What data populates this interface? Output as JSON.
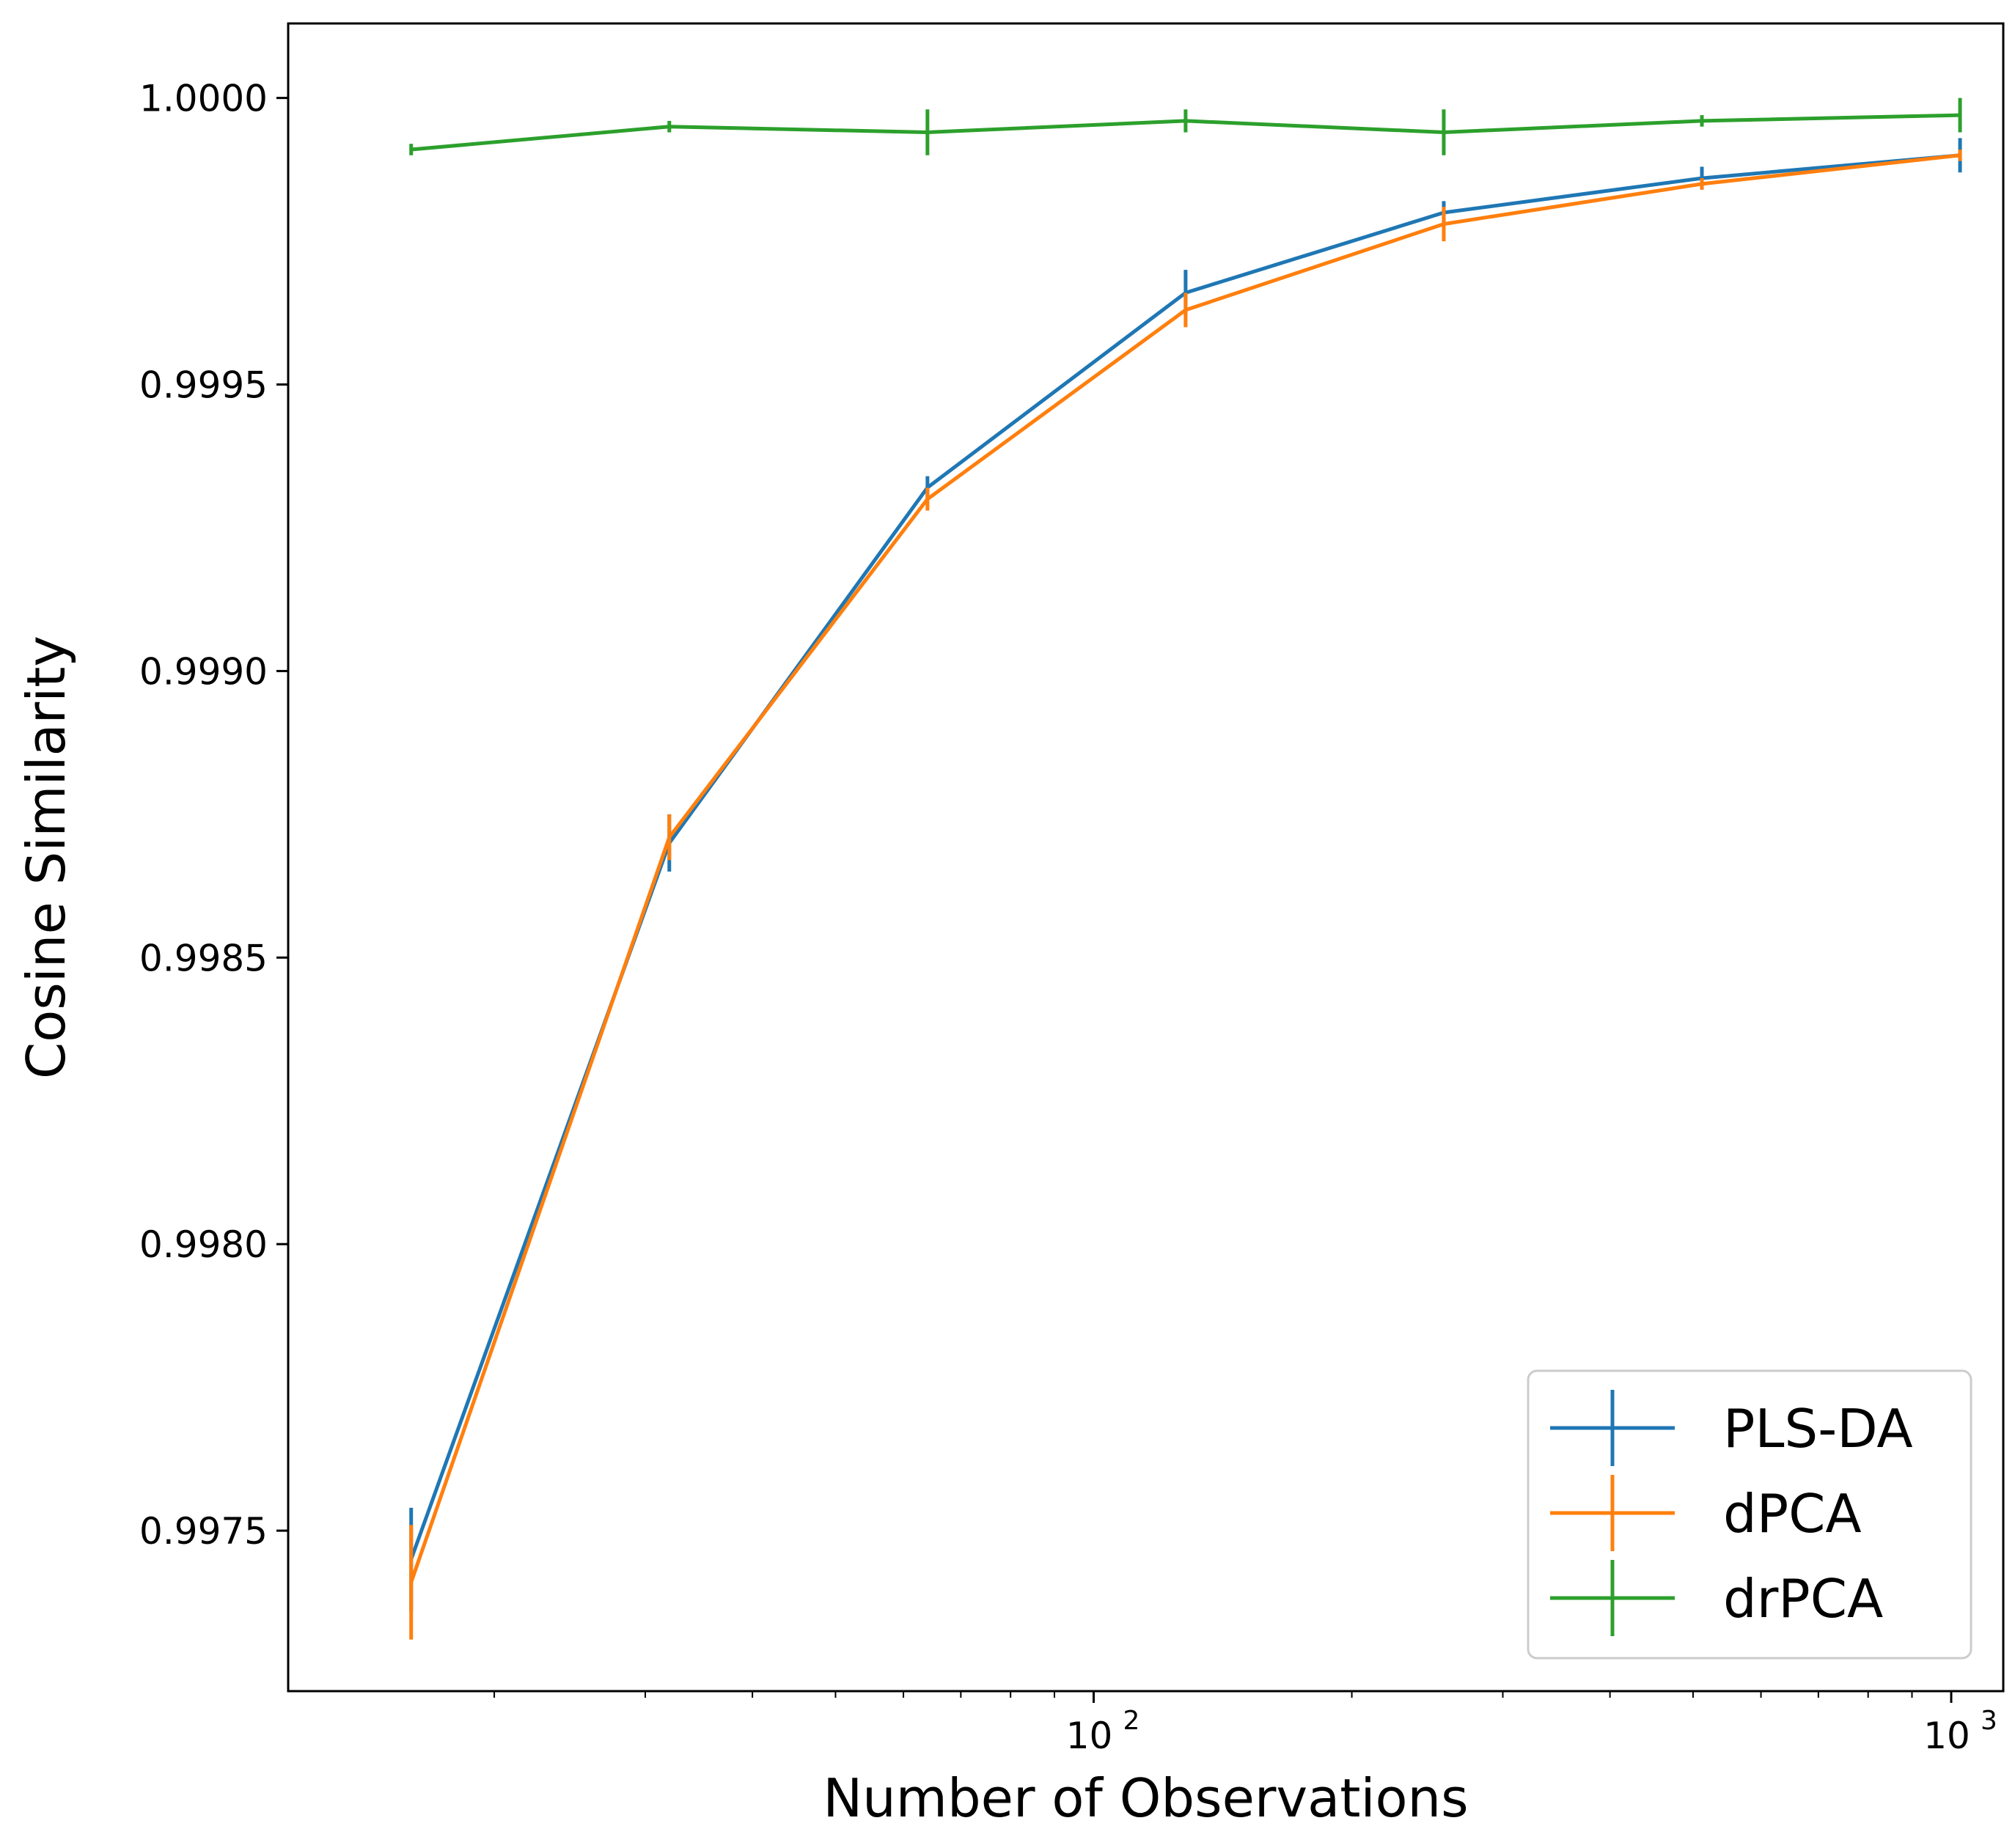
{
  "chart_data": {
    "type": "line",
    "title": "",
    "xlabel": "Number of Observations",
    "ylabel": "Cosine Similarity",
    "x_scale": "log",
    "xlim": [
      11.5,
      1150
    ],
    "ylim": [
      0.99722,
      1.00013
    ],
    "x": [
      16,
      32,
      64,
      128,
      256,
      512,
      1024
    ],
    "yticks": [
      0.9975,
      0.998,
      0.9985,
      0.999,
      0.9995,
      1.0
    ],
    "ytick_labels": [
      "0.9975",
      "0.9980",
      "0.9985",
      "0.9990",
      "0.9995",
      "1.0000"
    ],
    "xticks": [
      100,
      1000
    ],
    "xtick_labels": [
      {
        "base": "10",
        "exp": "2"
      },
      {
        "base": "10",
        "exp": "3"
      }
    ],
    "grid": false,
    "legend_position": "lower-right",
    "series": [
      {
        "name": "PLS-DA",
        "color": "#1f77b4",
        "values": [
          0.99745,
          0.9987,
          0.99932,
          0.99966,
          0.9998,
          0.99986,
          0.9999
        ],
        "errors": [
          9e-05,
          5e-05,
          2e-05,
          4e-05,
          2e-05,
          2e-05,
          3e-05
        ]
      },
      {
        "name": "dPCA",
        "color": "#ff7f0e",
        "values": [
          0.99741,
          0.99871,
          0.9993,
          0.99963,
          0.99978,
          0.99985,
          0.9999
        ],
        "errors": [
          0.0001,
          4e-05,
          2e-05,
          3e-05,
          3e-05,
          1e-05,
          1e-05
        ]
      },
      {
        "name": "drPCA",
        "color": "#2ca02c",
        "values": [
          0.99991,
          0.99995,
          0.99994,
          0.99996,
          0.99994,
          0.99996,
          0.99997
        ],
        "errors": [
          1e-05,
          1e-05,
          4e-05,
          2e-05,
          4e-05,
          1e-05,
          3e-05
        ]
      }
    ]
  }
}
